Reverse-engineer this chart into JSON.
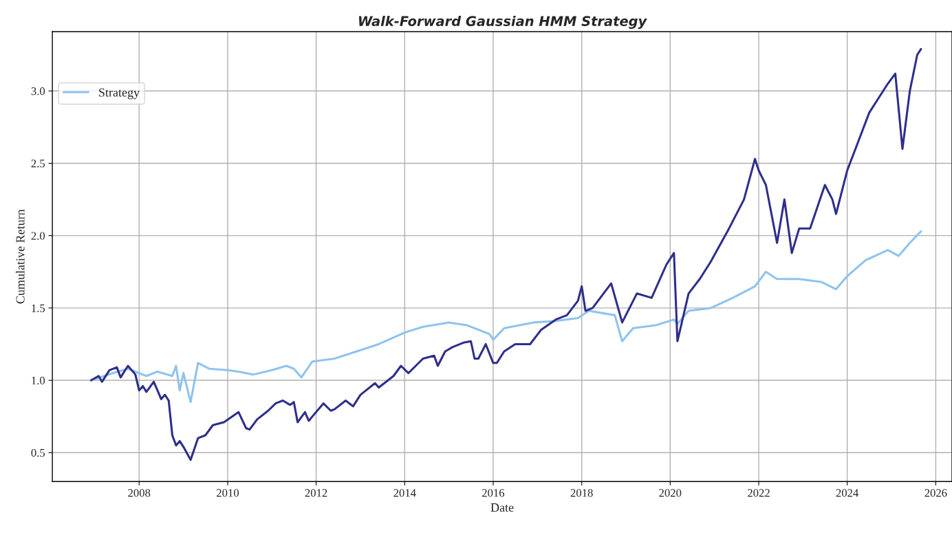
{
  "chart_data": {
    "type": "line",
    "title": "Walk-Forward Gaussian HMM Strategy",
    "xlabel": "Date",
    "ylabel": "Cumulative Return",
    "series": [
      {
        "name": "Strategy",
        "color": "#8fc3ee",
        "x": [
          "2006-12",
          "2007-06",
          "2007-10",
          "2008-03",
          "2008-06",
          "2008-10",
          "2008-11",
          "2008-12",
          "2009-01",
          "2009-03",
          "2009-05",
          "2009-08",
          "2010-01",
          "2010-04",
          "2010-08",
          "2011-01",
          "2011-05",
          "2011-07",
          "2011-09",
          "2011-12",
          "2012-06",
          "2012-12",
          "2013-06",
          "2014-01",
          "2014-06",
          "2015-01",
          "2015-06",
          "2015-12",
          "2016-01",
          "2016-04",
          "2016-12",
          "2017-06",
          "2017-12",
          "2018-03",
          "2018-10",
          "2018-12",
          "2019-03",
          "2019-09",
          "2020-02",
          "2020-03",
          "2020-06",
          "2020-12",
          "2021-06",
          "2021-12",
          "2022-03",
          "2022-06",
          "2022-12",
          "2023-06",
          "2023-10",
          "2024-01",
          "2024-06",
          "2024-12",
          "2025-03",
          "2025-06",
          "2025-09"
        ],
        "values": [
          1.0,
          1.05,
          1.08,
          1.03,
          1.06,
          1.03,
          1.1,
          0.93,
          1.05,
          0.85,
          1.12,
          1.08,
          1.07,
          1.06,
          1.04,
          1.07,
          1.1,
          1.08,
          1.02,
          1.13,
          1.15,
          1.2,
          1.25,
          1.33,
          1.37,
          1.4,
          1.38,
          1.32,
          1.28,
          1.36,
          1.4,
          1.41,
          1.43,
          1.48,
          1.45,
          1.27,
          1.36,
          1.38,
          1.42,
          1.39,
          1.48,
          1.5,
          1.57,
          1.65,
          1.75,
          1.7,
          1.7,
          1.68,
          1.63,
          1.72,
          1.83,
          1.9,
          1.86,
          1.95,
          2.03
        ]
      },
      {
        "color": "#2e2e8c",
        "x": [
          "2006-12",
          "2007-02",
          "2007-03",
          "2007-05",
          "2007-07",
          "2007-08",
          "2007-10",
          "2007-12",
          "2008-01",
          "2008-02",
          "2008-03",
          "2008-05",
          "2008-06",
          "2008-07",
          "2008-08",
          "2008-09",
          "2008-10",
          "2008-11",
          "2008-12",
          "2009-01",
          "2009-03",
          "2009-05",
          "2009-07",
          "2009-09",
          "2009-12",
          "2010-04",
          "2010-06",
          "2010-07",
          "2010-09",
          "2010-12",
          "2011-02",
          "2011-04",
          "2011-06",
          "2011-07",
          "2011-08",
          "2011-10",
          "2011-11",
          "2011-12",
          "2012-03",
          "2012-05",
          "2012-06",
          "2012-09",
          "2012-11",
          "2013-01",
          "2013-05",
          "2013-06",
          "2013-10",
          "2013-12",
          "2014-02",
          "2014-06",
          "2014-09",
          "2014-10",
          "2014-12",
          "2015-02",
          "2015-05",
          "2015-07",
          "2015-08",
          "2015-09",
          "2015-11",
          "2016-01",
          "2016-02",
          "2016-04",
          "2016-07",
          "2016-11",
          "2017-02",
          "2017-06",
          "2017-09",
          "2017-12",
          "2018-01",
          "2018-02",
          "2018-04",
          "2018-09",
          "2018-12",
          "2019-04",
          "2019-08",
          "2019-12",
          "2020-02",
          "2020-03",
          "2020-06",
          "2020-09",
          "2020-12",
          "2021-05",
          "2021-09",
          "2021-12",
          "2022-01",
          "2022-03",
          "2022-06",
          "2022-08",
          "2022-10",
          "2022-12",
          "2023-03",
          "2023-07",
          "2023-09",
          "2023-10",
          "2024-01",
          "2024-04",
          "2024-07",
          "2024-12",
          "2025-02",
          "2025-04",
          "2025-06",
          "2025-08",
          "2025-09"
        ],
        "values": [
          1.0,
          1.03,
          0.99,
          1.07,
          1.09,
          1.02,
          1.1,
          1.04,
          0.93,
          0.96,
          0.92,
          0.99,
          0.93,
          0.87,
          0.9,
          0.86,
          0.62,
          0.55,
          0.58,
          0.54,
          0.45,
          0.6,
          0.62,
          0.69,
          0.71,
          0.78,
          0.67,
          0.66,
          0.73,
          0.79,
          0.84,
          0.86,
          0.83,
          0.85,
          0.71,
          0.78,
          0.72,
          0.75,
          0.84,
          0.79,
          0.8,
          0.86,
          0.82,
          0.9,
          0.98,
          0.95,
          1.03,
          1.1,
          1.05,
          1.15,
          1.17,
          1.1,
          1.2,
          1.23,
          1.26,
          1.27,
          1.15,
          1.15,
          1.25,
          1.12,
          1.12,
          1.2,
          1.25,
          1.25,
          1.35,
          1.42,
          1.45,
          1.55,
          1.65,
          1.48,
          1.5,
          1.67,
          1.4,
          1.6,
          1.57,
          1.8,
          1.88,
          1.27,
          1.6,
          1.7,
          1.82,
          2.05,
          2.25,
          2.53,
          2.45,
          2.35,
          1.95,
          2.25,
          1.88,
          2.05,
          2.05,
          2.35,
          2.25,
          2.15,
          2.45,
          2.65,
          2.85,
          3.05,
          3.12,
          2.6,
          3.0,
          3.25,
          3.29
        ]
      }
    ],
    "xlim": [
      "2006-01-15",
      "2026-05-15"
    ],
    "xticks": [
      {
        "value": "2008",
        "label": "2008"
      },
      {
        "value": "2010",
        "label": "2010"
      },
      {
        "value": "2012",
        "label": "2012"
      },
      {
        "value": "2014",
        "label": "2014"
      },
      {
        "value": "2016",
        "label": "2016"
      },
      {
        "value": "2018",
        "label": "2018"
      },
      {
        "value": "2020",
        "label": "2020"
      },
      {
        "value": "2022",
        "label": "2022"
      },
      {
        "value": "2024",
        "label": "2024"
      },
      {
        "value": "2026",
        "label": "2026"
      }
    ],
    "ylim": [
      0.3,
      3.41
    ],
    "yticks": [
      0.5,
      {
        "value": 1,
        "label": "1.0"
      },
      1.5,
      {
        "value": 2,
        "label": "2.0"
      },
      2.5,
      {
        "value": 3,
        "label": "3.0"
      }
    ],
    "grid": true,
    "legend": "top left",
    "line_style": "solid"
  }
}
